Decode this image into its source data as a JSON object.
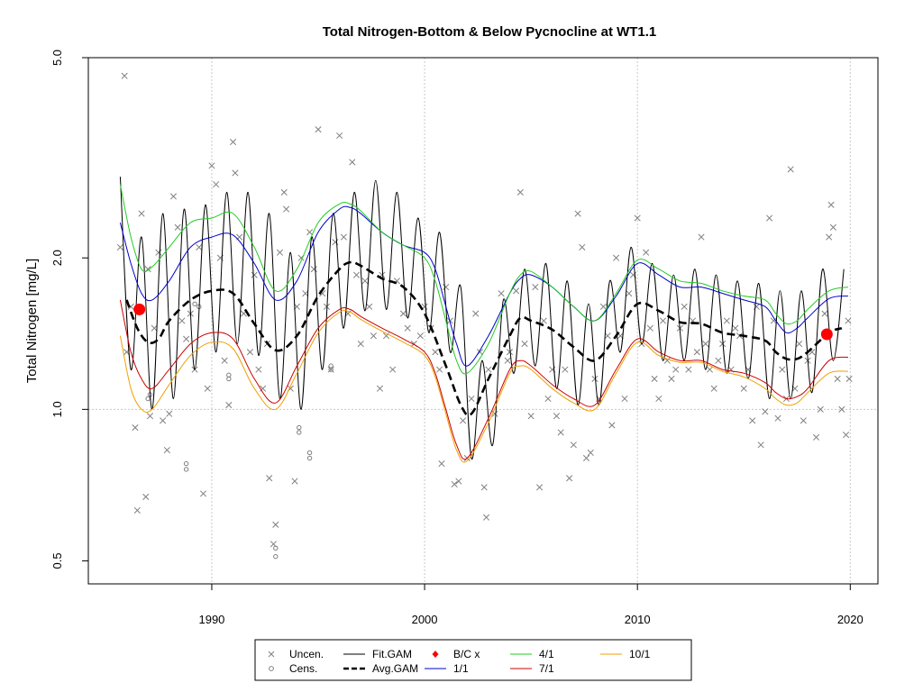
{
  "chart_data": {
    "type": "line",
    "title": "Total Nitrogen-Bottom & Below Pycnocline at WT1.1",
    "ylabel": "Total Nitrogen [mg/L]",
    "xlabel": "",
    "y_scale": "log",
    "xlim": [
      1984.2,
      2021.3
    ],
    "ylim": [
      0.45,
      5.0
    ],
    "x_ticks": [
      1990,
      2000,
      2010,
      2020
    ],
    "x_tick_labels": [
      "1990",
      "2000",
      "2010",
      "2020"
    ],
    "y_ticks": [
      0.5,
      1.0,
      2.0,
      5.0
    ],
    "y_tick_labels": [
      "0.5",
      "1.0",
      "2.0",
      "5.0"
    ],
    "vgrid_x": [
      1990,
      2000,
      2010,
      2020
    ],
    "hgrid_y": [
      1.0
    ],
    "colors": {
      "fit": "#000000",
      "avg": "#000000",
      "d1_1": "#0000cd",
      "d4_1": "#22cc22",
      "d7_1": "#cc0000",
      "d10_1": "#f0a000",
      "points": "#7f7f7f",
      "bc": "#ff0000"
    },
    "series": [
      {
        "name": "Avg.GAM",
        "x": [
          1986.0,
          1986.5,
          1987.0,
          1987.5,
          1988.0,
          1989.0,
          1990.0,
          1991.0,
          1992.0,
          1993.0,
          1994.0,
          1995.0,
          1996.0,
          1996.5,
          1997.0,
          1998.0,
          1999.0,
          2000.0,
          2001.0,
          2001.7,
          2002.2,
          2003.0,
          2004.0,
          2004.5,
          2005.0,
          2006.0,
          2007.0,
          2008.0,
          2009.0,
          2010.0,
          2011.0,
          2012.0,
          2013.0,
          2014.0,
          2015.0,
          2016.0,
          2016.5,
          2017.0,
          2017.5,
          2018.0,
          2019.0,
          2019.6
        ],
        "y": [
          1.65,
          1.45,
          1.36,
          1.38,
          1.5,
          1.65,
          1.72,
          1.7,
          1.48,
          1.31,
          1.4,
          1.68,
          1.9,
          1.96,
          1.93,
          1.82,
          1.75,
          1.55,
          1.22,
          1.02,
          0.98,
          1.15,
          1.4,
          1.52,
          1.5,
          1.44,
          1.33,
          1.25,
          1.4,
          1.62,
          1.57,
          1.49,
          1.48,
          1.42,
          1.4,
          1.37,
          1.3,
          1.26,
          1.26,
          1.3,
          1.42,
          1.45
        ]
      },
      {
        "name": "1/1",
        "x": [
          1985.7,
          1986.2,
          1986.7,
          1987.2,
          1988.0,
          1989.0,
          1990.0,
          1991.0,
          1992.0,
          1993.0,
          1994.0,
          1995.0,
          1996.0,
          1996.5,
          1997.0,
          1998.0,
          1999.0,
          2000.0,
          2000.5,
          2001.0,
          2001.5,
          2002.0,
          2003.0,
          2004.0,
          2004.5,
          2005.0,
          2006.0,
          2007.0,
          2008.0,
          2009.0,
          2010.0,
          2011.0,
          2012.0,
          2013.0,
          2014.0,
          2015.0,
          2016.0,
          2016.5,
          2017.0,
          2017.5,
          2018.0,
          2019.0,
          2019.9
        ],
        "y": [
          2.35,
          1.95,
          1.7,
          1.65,
          1.8,
          2.1,
          2.2,
          2.22,
          1.95,
          1.65,
          1.8,
          2.25,
          2.5,
          2.52,
          2.45,
          2.25,
          2.12,
          2.05,
          1.9,
          1.6,
          1.35,
          1.22,
          1.4,
          1.7,
          1.82,
          1.85,
          1.75,
          1.6,
          1.5,
          1.68,
          1.95,
          1.85,
          1.75,
          1.75,
          1.7,
          1.65,
          1.6,
          1.5,
          1.42,
          1.45,
          1.52,
          1.66,
          1.68
        ]
      },
      {
        "name": "4/1",
        "x": [
          1985.7,
          1986.2,
          1986.7,
          1987.2,
          1988.0,
          1989.0,
          1990.0,
          1991.0,
          1992.0,
          1993.0,
          1994.0,
          1995.0,
          1996.0,
          1996.5,
          1997.0,
          1998.0,
          1999.0,
          2000.0,
          2000.5,
          2001.0,
          2001.5,
          2002.0,
          2003.0,
          2004.0,
          2004.5,
          2005.0,
          2006.0,
          2007.0,
          2008.0,
          2009.0,
          2010.0,
          2011.0,
          2012.0,
          2013.0,
          2014.0,
          2015.0,
          2016.0,
          2016.5,
          2017.0,
          2017.5,
          2018.0,
          2019.0,
          2019.9
        ],
        "y": [
          2.8,
          2.2,
          1.9,
          1.92,
          2.1,
          2.35,
          2.4,
          2.45,
          2.1,
          1.72,
          1.9,
          2.35,
          2.56,
          2.56,
          2.48,
          2.25,
          2.12,
          2.0,
          1.8,
          1.5,
          1.25,
          1.18,
          1.35,
          1.7,
          1.85,
          1.88,
          1.75,
          1.6,
          1.5,
          1.7,
          1.98,
          1.9,
          1.8,
          1.78,
          1.72,
          1.68,
          1.65,
          1.55,
          1.48,
          1.5,
          1.58,
          1.72,
          1.75
        ]
      },
      {
        "name": "7/1",
        "x": [
          1985.7,
          1986.2,
          1986.7,
          1987.2,
          1988.0,
          1989.0,
          1990.0,
          1991.0,
          1992.0,
          1993.0,
          1994.0,
          1995.0,
          1996.0,
          1996.5,
          1997.0,
          1998.0,
          1999.0,
          2000.0,
          2000.5,
          2001.0,
          2001.5,
          2002.0,
          2003.0,
          2004.0,
          2004.5,
          2005.0,
          2006.0,
          2007.0,
          2008.0,
          2009.0,
          2010.0,
          2011.0,
          2012.0,
          2013.0,
          2014.0,
          2015.0,
          2016.0,
          2016.5,
          2017.0,
          2017.5,
          2018.0,
          2019.0,
          2019.9
        ],
        "y": [
          1.65,
          1.3,
          1.15,
          1.1,
          1.2,
          1.35,
          1.42,
          1.38,
          1.15,
          1.03,
          1.22,
          1.45,
          1.58,
          1.58,
          1.53,
          1.45,
          1.38,
          1.3,
          1.18,
          1.0,
          0.85,
          0.8,
          0.96,
          1.2,
          1.25,
          1.22,
          1.12,
          1.05,
          1.02,
          1.2,
          1.38,
          1.3,
          1.25,
          1.25,
          1.2,
          1.18,
          1.13,
          1.08,
          1.05,
          1.06,
          1.1,
          1.25,
          1.27
        ]
      },
      {
        "name": "10/1",
        "x": [
          1985.7,
          1986.2,
          1986.7,
          1987.2,
          1988.0,
          1989.0,
          1990.0,
          1991.0,
          1992.0,
          1993.0,
          1994.0,
          1995.0,
          1996.0,
          1996.5,
          1997.0,
          1998.0,
          1999.0,
          2000.0,
          2000.5,
          2001.0,
          2001.5,
          2002.0,
          2003.0,
          2004.0,
          2004.5,
          2005.0,
          2006.0,
          2007.0,
          2008.0,
          2009.0,
          2010.0,
          2011.0,
          2012.0,
          2013.0,
          2014.0,
          2015.0,
          2016.0,
          2016.5,
          2017.0,
          2017.5,
          2018.0,
          2019.0,
          2019.9
        ],
        "y": [
          1.4,
          1.1,
          1.0,
          1.0,
          1.12,
          1.28,
          1.36,
          1.32,
          1.1,
          1.0,
          1.18,
          1.42,
          1.56,
          1.56,
          1.51,
          1.43,
          1.36,
          1.28,
          1.16,
          0.98,
          0.83,
          0.79,
          0.94,
          1.18,
          1.22,
          1.2,
          1.1,
          1.03,
          1.0,
          1.18,
          1.36,
          1.28,
          1.24,
          1.24,
          1.19,
          1.16,
          1.1,
          1.05,
          1.02,
          1.03,
          1.08,
          1.18,
          1.19
        ]
      },
      {
        "name": "Fit.GAM",
        "x_start": 1985.7,
        "x_end": 2019.95,
        "step": 0.5,
        "y": [
          2.9,
          1.2,
          2.2,
          1.0,
          2.45,
          1.05,
          2.5,
          1.2,
          2.55,
          1.3,
          2.7,
          1.35,
          2.7,
          1.28,
          2.45,
          1.05,
          2.05,
          1.0,
          2.2,
          1.2,
          2.45,
          1.45,
          2.7,
          1.57,
          2.85,
          1.58,
          2.7,
          1.52,
          2.4,
          1.42,
          2.25,
          1.3,
          1.75,
          0.8,
          1.25,
          0.85,
          1.65,
          1.18,
          1.9,
          1.22,
          1.95,
          1.1,
          1.8,
          1.02,
          1.62,
          1.02,
          1.8,
          1.3,
          2.1,
          1.35,
          1.95,
          1.25,
          1.85,
          1.25,
          1.9,
          1.2,
          1.85,
          1.18,
          1.8,
          1.15,
          1.78,
          1.05,
          1.72,
          1.05,
          1.72,
          1.08,
          1.9,
          1.25,
          1.9
        ]
      }
    ],
    "uncensored_points": [
      [
        1985.7,
        2.1
      ],
      [
        1985.9,
        4.6
      ],
      [
        1986.0,
        1.3
      ],
      [
        1986.2,
        1.6
      ],
      [
        1986.4,
        0.92
      ],
      [
        1986.5,
        0.63
      ],
      [
        1986.7,
        2.45
      ],
      [
        1986.9,
        0.67
      ],
      [
        1987.0,
        1.9
      ],
      [
        1987.1,
        0.97
      ],
      [
        1987.3,
        1.45
      ],
      [
        1987.5,
        2.05
      ],
      [
        1987.7,
        0.95
      ],
      [
        1987.9,
        0.83
      ],
      [
        1988.0,
        0.98
      ],
      [
        1988.2,
        2.65
      ],
      [
        1988.4,
        2.3
      ],
      [
        1988.6,
        1.5
      ],
      [
        1988.8,
        1.38
      ],
      [
        1989.0,
        1.55
      ],
      [
        1989.2,
        1.2
      ],
      [
        1989.4,
        2.1
      ],
      [
        1989.6,
        0.68
      ],
      [
        1989.8,
        1.1
      ],
      [
        1990.0,
        3.05
      ],
      [
        1990.2,
        2.8
      ],
      [
        1990.4,
        2.0
      ],
      [
        1990.6,
        1.25
      ],
      [
        1990.8,
        1.02
      ],
      [
        1991.0,
        3.4
      ],
      [
        1991.1,
        2.95
      ],
      [
        1991.3,
        2.2
      ],
      [
        1991.5,
        1.55
      ],
      [
        1991.8,
        1.3
      ],
      [
        1992.0,
        1.85
      ],
      [
        1992.2,
        1.2
      ],
      [
        1992.4,
        1.1
      ],
      [
        1992.6,
        1.35
      ],
      [
        1992.7,
        0.73
      ],
      [
        1992.9,
        0.54
      ],
      [
        1993.0,
        0.59
      ],
      [
        1993.2,
        2.05
      ],
      [
        1993.4,
        2.7
      ],
      [
        1993.5,
        2.5
      ],
      [
        1993.7,
        1.1
      ],
      [
        1993.9,
        0.72
      ],
      [
        1994.0,
        1.6
      ],
      [
        1994.2,
        2.0
      ],
      [
        1994.4,
        1.7
      ],
      [
        1994.6,
        2.25
      ],
      [
        1994.8,
        1.9
      ],
      [
        1995.0,
        3.6
      ],
      [
        1995.2,
        1.7
      ],
      [
        1995.4,
        1.6
      ],
      [
        1995.6,
        1.2
      ],
      [
        1995.8,
        2.15
      ],
      [
        1996.0,
        3.5
      ],
      [
        1996.2,
        2.2
      ],
      [
        1996.4,
        1.55
      ],
      [
        1996.6,
        3.1
      ],
      [
        1996.8,
        1.85
      ],
      [
        1997.0,
        1.35
      ],
      [
        1997.2,
        1.8
      ],
      [
        1997.4,
        1.6
      ],
      [
        1997.6,
        1.4
      ],
      [
        1997.9,
        1.1
      ],
      [
        1998.0,
        1.85
      ],
      [
        1998.2,
        1.4
      ],
      [
        1998.5,
        1.2
      ],
      [
        1998.7,
        1.8
      ],
      [
        1999.0,
        1.55
      ],
      [
        1999.2,
        1.45
      ],
      [
        1999.5,
        1.35
      ],
      [
        1999.8,
        1.4
      ],
      [
        2000.0,
        1.6
      ],
      [
        2000.3,
        1.45
      ],
      [
        2000.5,
        1.3
      ],
      [
        2000.7,
        1.2
      ],
      [
        2000.8,
        0.78
      ],
      [
        2001.0,
        1.75
      ],
      [
        2001.2,
        1.5
      ],
      [
        2001.4,
        0.71
      ],
      [
        2001.6,
        0.72
      ],
      [
        2001.8,
        0.95
      ],
      [
        2002.0,
        0.8
      ],
      [
        2002.2,
        1.05
      ],
      [
        2002.4,
        1.55
      ],
      [
        2002.6,
        1.3
      ],
      [
        2002.8,
        0.7
      ],
      [
        2002.9,
        0.61
      ],
      [
        2003.0,
        1.2
      ],
      [
        2003.3,
        0.98
      ],
      [
        2003.6,
        1.7
      ],
      [
        2003.9,
        1.25
      ],
      [
        2004.0,
        1.3
      ],
      [
        2004.3,
        1.72
      ],
      [
        2004.5,
        2.7
      ],
      [
        2004.7,
        1.35
      ],
      [
        2005.0,
        0.97
      ],
      [
        2005.2,
        1.75
      ],
      [
        2005.4,
        0.7
      ],
      [
        2005.6,
        1.5
      ],
      [
        2005.8,
        1.05
      ],
      [
        2006.0,
        1.2
      ],
      [
        2006.2,
        0.97
      ],
      [
        2006.4,
        0.9
      ],
      [
        2006.6,
        1.2
      ],
      [
        2006.8,
        0.73
      ],
      [
        2007.0,
        0.85
      ],
      [
        2007.2,
        2.45
      ],
      [
        2007.4,
        2.1
      ],
      [
        2007.6,
        0.8
      ],
      [
        2007.8,
        0.82
      ],
      [
        2008.0,
        1.15
      ],
      [
        2008.2,
        1.05
      ],
      [
        2008.4,
        1.6
      ],
      [
        2008.6,
        1.4
      ],
      [
        2008.8,
        0.93
      ],
      [
        2009.0,
        2.0
      ],
      [
        2009.2,
        1.4
      ],
      [
        2009.4,
        1.05
      ],
      [
        2009.6,
        1.7
      ],
      [
        2009.8,
        1.85
      ],
      [
        2010.0,
        2.4
      ],
      [
        2010.2,
        1.35
      ],
      [
        2010.4,
        2.05
      ],
      [
        2010.6,
        1.45
      ],
      [
        2010.8,
        1.15
      ],
      [
        2011.0,
        1.05
      ],
      [
        2011.2,
        1.5
      ],
      [
        2011.4,
        1.25
      ],
      [
        2011.6,
        1.15
      ],
      [
        2011.8,
        1.2
      ],
      [
        2012.0,
        1.45
      ],
      [
        2012.2,
        1.6
      ],
      [
        2012.4,
        1.2
      ],
      [
        2012.6,
        1.5
      ],
      [
        2012.8,
        1.3
      ],
      [
        2013.0,
        2.2
      ],
      [
        2013.2,
        1.35
      ],
      [
        2013.4,
        1.2
      ],
      [
        2013.6,
        1.1
      ],
      [
        2013.8,
        1.25
      ],
      [
        2014.0,
        1.35
      ],
      [
        2014.2,
        1.5
      ],
      [
        2014.4,
        1.2
      ],
      [
        2014.6,
        1.45
      ],
      [
        2014.8,
        1.4
      ],
      [
        2015.0,
        1.1
      ],
      [
        2015.2,
        1.2
      ],
      [
        2015.4,
        0.95
      ],
      [
        2015.6,
        1.6
      ],
      [
        2015.8,
        0.85
      ],
      [
        2016.0,
        0.99
      ],
      [
        2016.2,
        2.4
      ],
      [
        2016.4,
        1.5
      ],
      [
        2016.6,
        0.96
      ],
      [
        2016.8,
        1.2
      ],
      [
        2017.0,
        1.05
      ],
      [
        2017.2,
        3.0
      ],
      [
        2017.4,
        1.1
      ],
      [
        2017.6,
        1.35
      ],
      [
        2017.8,
        0.95
      ],
      [
        2018.0,
        1.25
      ],
      [
        2018.2,
        1.3
      ],
      [
        2018.4,
        0.88
      ],
      [
        2018.6,
        1.0
      ],
      [
        2018.8,
        1.55
      ],
      [
        2019.0,
        2.2
      ],
      [
        2019.1,
        2.55
      ],
      [
        2019.2,
        2.3
      ],
      [
        2019.4,
        1.15
      ],
      [
        2019.6,
        1.0
      ],
      [
        2019.8,
        0.89
      ],
      [
        2019.9,
        1.5
      ],
      [
        2019.95,
        1.15
      ]
    ],
    "censored_points": [
      [
        1987.0,
        1.05
      ],
      [
        1987.1,
        1.07
      ],
      [
        1988.8,
        0.78
      ],
      [
        1988.8,
        0.76
      ],
      [
        1990.8,
        1.15
      ],
      [
        1990.8,
        1.17
      ],
      [
        1993.0,
        0.53
      ],
      [
        1993.0,
        0.51
      ],
      [
        1994.1,
        0.92
      ],
      [
        1994.1,
        0.9
      ],
      [
        1994.6,
        0.8
      ],
      [
        1994.6,
        0.82
      ],
      [
        1995.6,
        1.22
      ],
      [
        1995.6,
        1.2
      ],
      [
        1989.2,
        1.62
      ],
      [
        1989.4,
        1.6
      ]
    ],
    "bc_points": [
      [
        1986.6,
        1.58
      ],
      [
        2018.9,
        1.41
      ]
    ],
    "legend": {
      "placement": "bottom-center",
      "entries": [
        {
          "label": "Uncen.",
          "symbol": "x"
        },
        {
          "label": "Cens.",
          "symbol": "circle"
        },
        {
          "label": "Fit.GAM",
          "symbol": "line"
        },
        {
          "label": "Avg.GAM",
          "symbol": "dashed"
        },
        {
          "label": "B/C x",
          "symbol": "diamond"
        },
        {
          "label": "1/1",
          "symbol": "line"
        },
        {
          "label": "4/1",
          "symbol": "line"
        },
        {
          "label": "7/1",
          "symbol": "line"
        },
        {
          "label": "10/1",
          "symbol": "line"
        }
      ]
    }
  }
}
